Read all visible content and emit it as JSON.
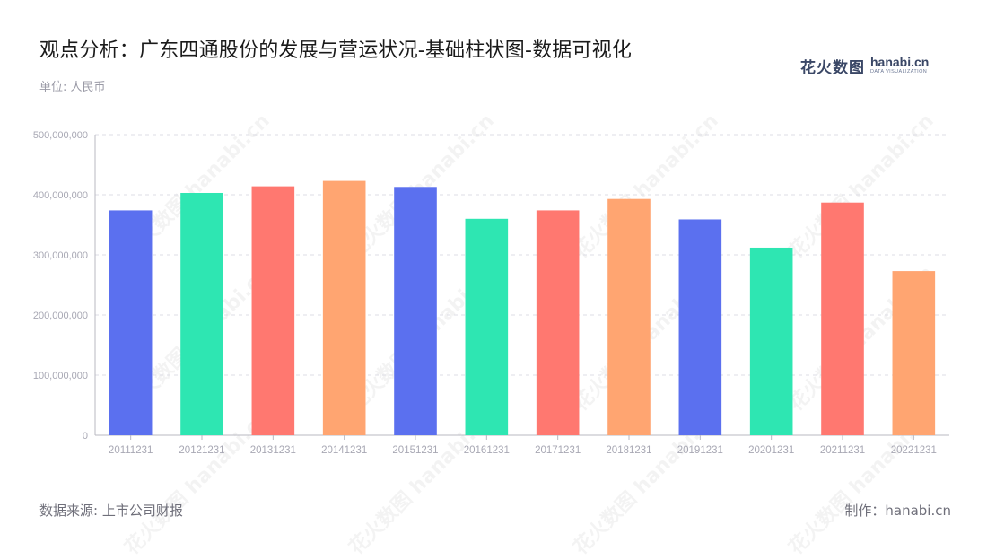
{
  "header": {
    "title": "观点分析：广东四通股份的发展与营运状况-基础柱状图-数据可视化",
    "unit": "单位: 人民币"
  },
  "brand": {
    "name_cn": "花火数图",
    "name_en": "hanabi.cn",
    "subtitle": "DATA VISUALIZATION",
    "watermark": "花火数图 hanabi.cn"
  },
  "footer": {
    "source": "数据来源: 上市公司财报",
    "credit": "制作：hanabi.cn"
  },
  "colors": {
    "palette": [
      "#5b70ef",
      "#2ee6b2",
      "#ff7870",
      "#ffa571"
    ],
    "grid": "#dcdce4",
    "axis": "#b8b8c2",
    "tick_text": "#a8a8b4"
  },
  "chart_data": {
    "type": "bar",
    "categories": [
      "20111231",
      "20121231",
      "20131231",
      "20141231",
      "20151231",
      "20161231",
      "20171231",
      "20181231",
      "20191231",
      "20201231",
      "20211231",
      "20221231"
    ],
    "values": [
      374000000,
      403000000,
      414000000,
      423000000,
      413000000,
      360000000,
      374000000,
      393000000,
      359000000,
      312000000,
      387000000,
      273000000
    ],
    "ylim": [
      0,
      500000000
    ],
    "yticks": [
      "0",
      "100,000,000",
      "200,000,000",
      "300,000,000",
      "400,000,000",
      "500,000,000"
    ],
    "ytick_values": [
      0,
      100000000,
      200000000,
      300000000,
      400000000,
      500000000
    ],
    "grid": true,
    "legend": "none",
    "xlabel": "",
    "ylabel": ""
  }
}
